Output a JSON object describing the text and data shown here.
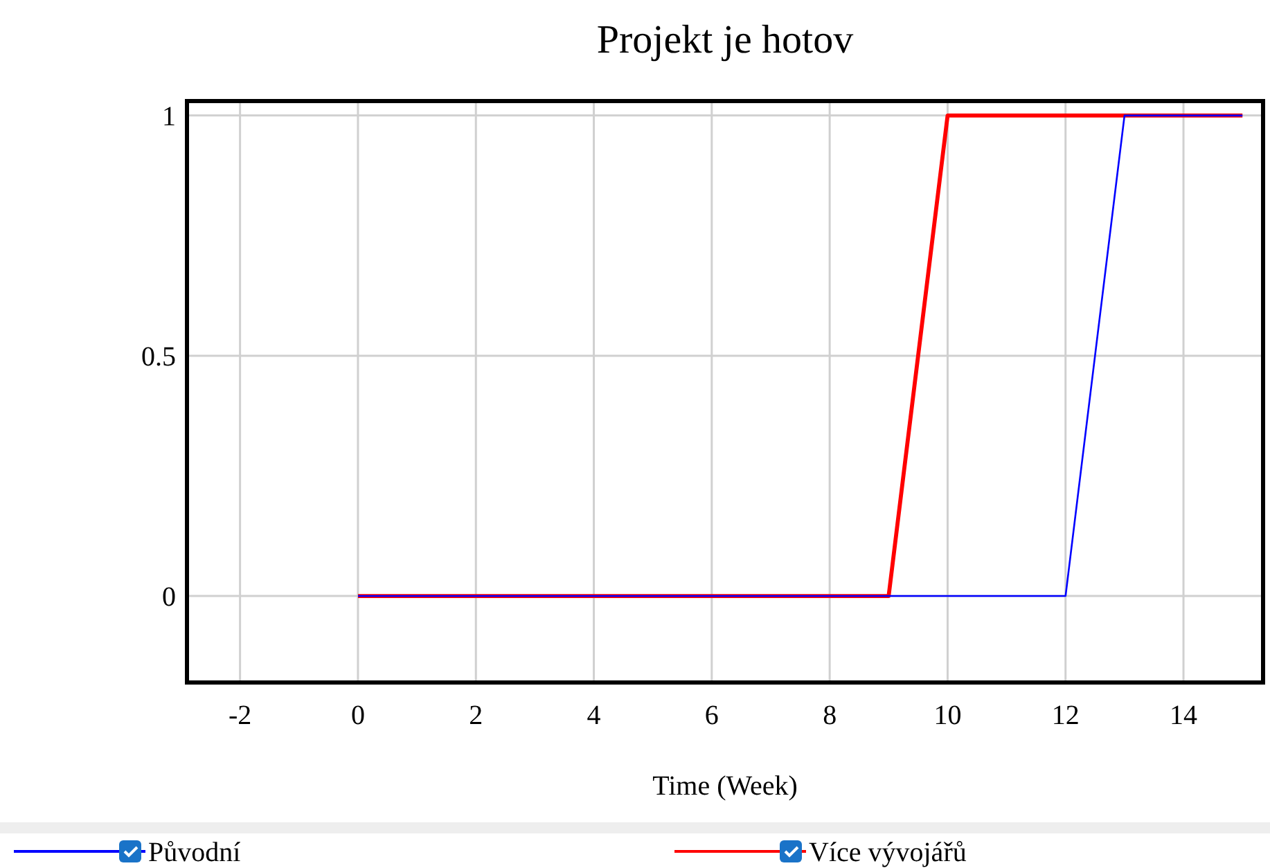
{
  "chart_data": {
    "type": "line",
    "title": "Projekt je hotov",
    "xlabel": "Time (Week)",
    "xlim": [
      -2.9,
      15.35
    ],
    "xticks": [
      -2,
      0,
      2,
      4,
      6,
      8,
      10,
      12,
      14
    ],
    "ylim": [
      -0.18,
      1.03
    ],
    "yticks": [
      0,
      0.5,
      1
    ],
    "grid": true,
    "legend": "bottom",
    "marker": "none",
    "line_style": "solid",
    "series": [
      {
        "name": "Původní",
        "color": "#0000ff",
        "x": [
          0,
          12,
          13,
          15
        ],
        "values": [
          0,
          0,
          1,
          1
        ]
      },
      {
        "name": "Více vývojářů",
        "color": "#ff0000",
        "x": [
          0,
          9,
          10,
          15
        ],
        "values": [
          0,
          0,
          1,
          1
        ]
      }
    ]
  }
}
